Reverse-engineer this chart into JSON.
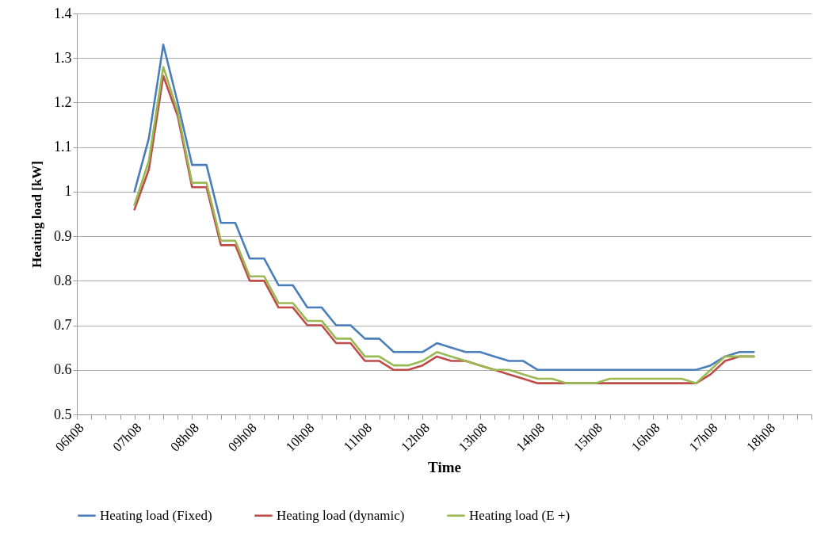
{
  "chart_data": {
    "type": "line",
    "xlabel": "Time",
    "ylabel": "Heating load [kW]",
    "categories": [
      "06h08",
      null,
      null,
      null,
      "07h08",
      null,
      null,
      null,
      "08h08",
      null,
      null,
      null,
      "09h08",
      null,
      null,
      null,
      "10h08",
      null,
      null,
      null,
      "11h08",
      null,
      null,
      null,
      "12h08",
      null,
      null,
      null,
      "13h08",
      null,
      null,
      null,
      "14h08",
      null,
      null,
      null,
      "15h08",
      null,
      null,
      null,
      "16h08",
      null,
      null,
      null,
      "17h08",
      null,
      null,
      null,
      "18h08",
      null,
      null,
      null
    ],
    "ylim": [
      0.5,
      1.4
    ],
    "yticks": [
      0.5,
      0.6,
      0.7,
      0.8,
      0.9,
      1,
      1.1,
      1.2,
      1.3,
      1.4
    ],
    "grid": "y",
    "legend": "bottom",
    "marker": "none",
    "line_style": "solid",
    "series": [
      {
        "name": "Heating load (Fixed)",
        "color": "#4a7ebb",
        "values": [
          null,
          null,
          null,
          null,
          1.0,
          1.12,
          1.33,
          1.2,
          1.06,
          1.06,
          0.93,
          0.93,
          0.85,
          0.85,
          0.79,
          0.79,
          0.74,
          0.74,
          0.7,
          0.7,
          0.67,
          0.67,
          0.64,
          0.64,
          0.64,
          0.66,
          0.65,
          0.64,
          0.64,
          0.63,
          0.62,
          0.62,
          0.6,
          0.6,
          0.6,
          0.6,
          0.6,
          0.6,
          0.6,
          0.6,
          0.6,
          0.6,
          0.6,
          0.6,
          0.61,
          0.63,
          0.64,
          0.64,
          null,
          null,
          null,
          null
        ]
      },
      {
        "name": "Heating load (dynamic)",
        "color": "#be4b48",
        "values": [
          null,
          null,
          null,
          null,
          0.96,
          1.05,
          1.26,
          1.17,
          1.01,
          1.01,
          0.88,
          0.88,
          0.8,
          0.8,
          0.74,
          0.74,
          0.7,
          0.7,
          0.66,
          0.66,
          0.62,
          0.62,
          0.6,
          0.6,
          0.61,
          0.63,
          0.62,
          0.62,
          0.61,
          0.6,
          0.59,
          0.58,
          0.57,
          0.57,
          0.57,
          0.57,
          0.57,
          0.57,
          0.57,
          0.57,
          0.57,
          0.57,
          0.57,
          0.57,
          0.59,
          0.62,
          0.63,
          0.63,
          null,
          null,
          null,
          null
        ]
      },
      {
        "name": "Heating load (E +)",
        "color": "#98b954",
        "values": [
          null,
          null,
          null,
          null,
          0.97,
          1.07,
          1.28,
          1.18,
          1.02,
          1.02,
          0.89,
          0.89,
          0.81,
          0.81,
          0.75,
          0.75,
          0.71,
          0.71,
          0.67,
          0.67,
          0.63,
          0.63,
          0.61,
          0.61,
          0.62,
          0.64,
          0.63,
          0.62,
          0.61,
          0.6,
          0.6,
          0.59,
          0.58,
          0.58,
          0.57,
          0.57,
          0.57,
          0.58,
          0.58,
          0.58,
          0.58,
          0.58,
          0.58,
          0.57,
          0.6,
          0.63,
          0.63,
          0.63,
          null,
          null,
          null,
          null
        ]
      }
    ]
  }
}
